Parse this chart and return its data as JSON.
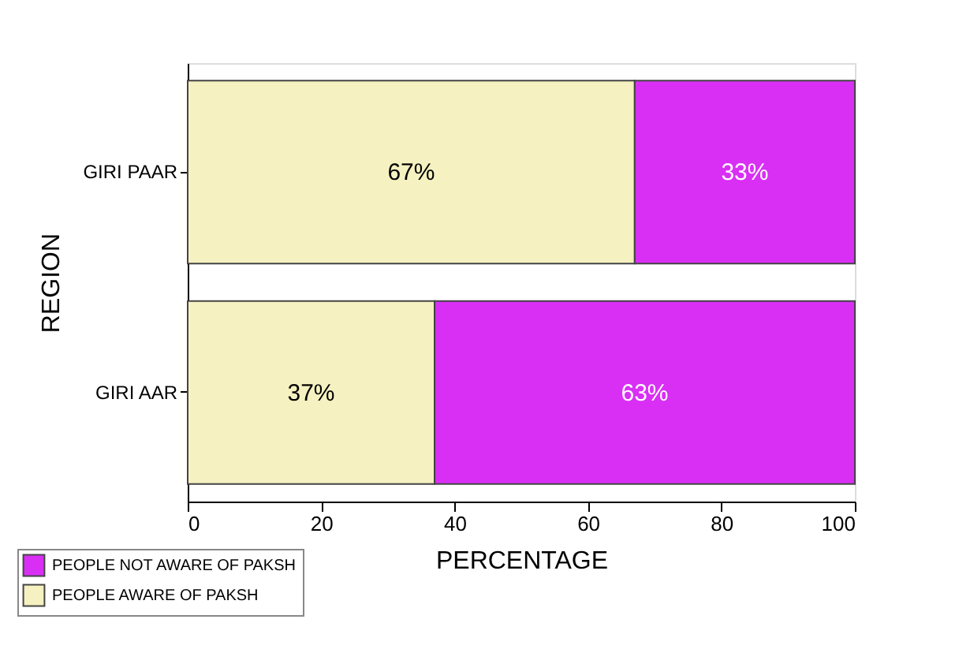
{
  "chart_data": {
    "type": "bar",
    "orientation": "horizontal",
    "stacked": true,
    "xlabel": "PERCENTAGE",
    "ylabel": "REGION",
    "categories": [
      "GIRI PAAR",
      "GIRI AAR"
    ],
    "series": [
      {
        "name": "PEOPLE AWARE OF PAKSH",
        "color": "#f5f1c0",
        "values": [
          67,
          37
        ],
        "value_labels": [
          "67%",
          "37%"
        ]
      },
      {
        "name": "PEOPLE NOT AWARE OF PAKSH",
        "color": "#d92ff5",
        "values": [
          33,
          63
        ],
        "value_labels": [
          "33%",
          "63%"
        ]
      }
    ],
    "xlim": [
      0,
      100
    ],
    "xticks": [
      0,
      20,
      40,
      60,
      80,
      100
    ],
    "grid": false,
    "legend": "bottom left"
  }
}
